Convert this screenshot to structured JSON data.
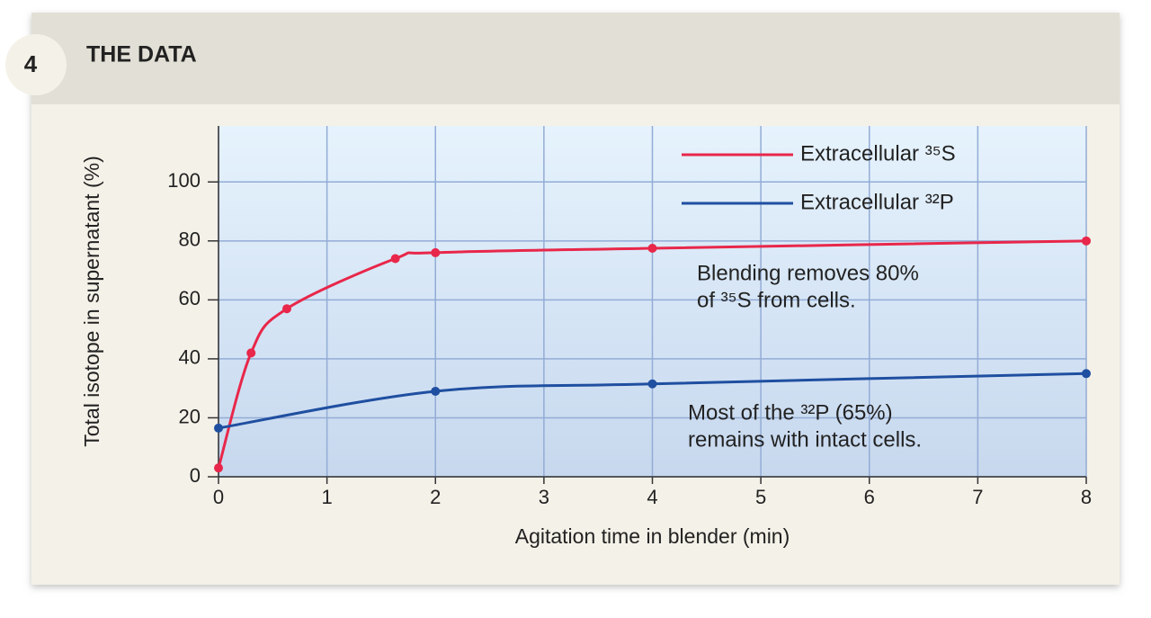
{
  "chart_data": {
    "type": "line",
    "panel_label": "4",
    "title": "THE DATA",
    "xlabel": "Agitation time in blender (min)",
    "ylabel": "Total isotope in supernatant (%)",
    "xlim": [
      0,
      8
    ],
    "xticks": [
      0,
      1,
      2,
      3,
      4,
      5,
      6,
      7,
      8
    ],
    "ylim": [
      0,
      119
    ],
    "yticks": [
      0,
      20,
      40,
      60,
      80,
      100
    ],
    "grid": true,
    "legend": "upper right",
    "series": [
      {
        "name": "Extracellular ³⁵S",
        "color": "#e8274a",
        "x": [
          0,
          0.3,
          0.63,
          1.63,
          2,
          4,
          8
        ],
        "values": [
          3,
          42,
          57,
          74,
          76,
          77.5,
          80
        ]
      },
      {
        "name": "Extracellular ³²P",
        "color": "#1f4fa0",
        "x": [
          0,
          2,
          4,
          8
        ],
        "values": [
          16.5,
          29,
          31.5,
          35
        ]
      }
    ],
    "annotations": [
      [
        "Blending removes 80%",
        "of ³⁵S from cells."
      ],
      [
        "Most of the ³²P (65%)",
        "remains with intact cells."
      ]
    ]
  }
}
